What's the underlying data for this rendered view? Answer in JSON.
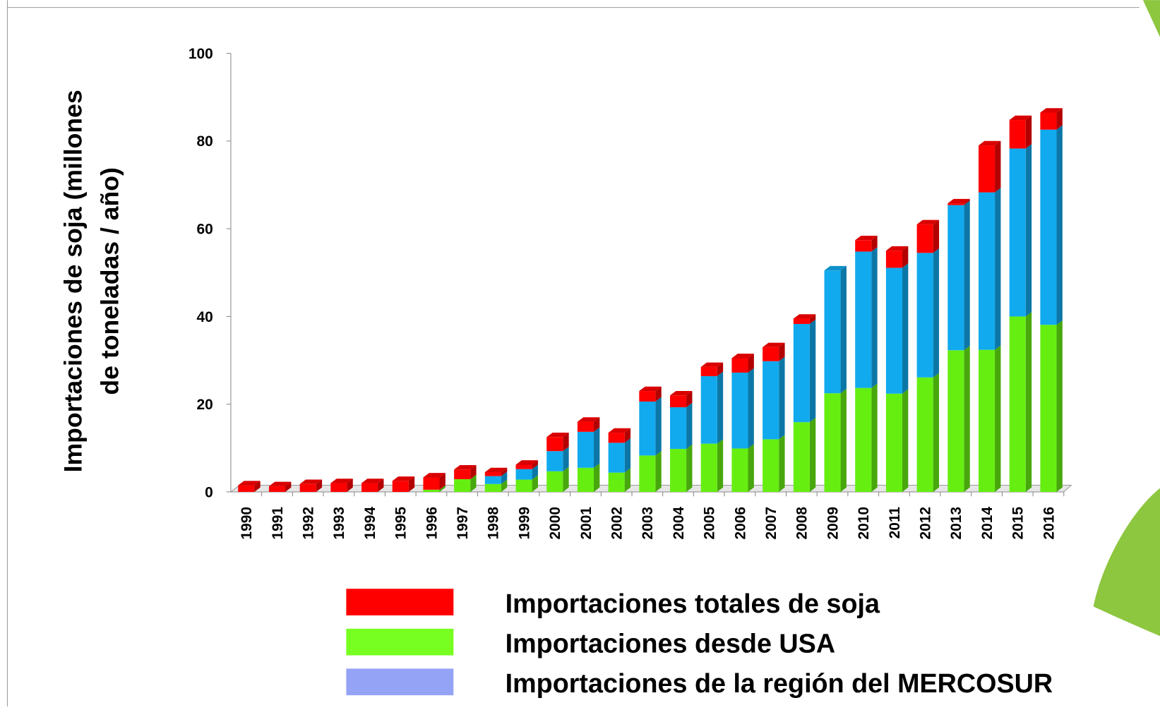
{
  "chart_data": {
    "type": "bar",
    "stacked": true,
    "ylabel": [
      "Importaciones de soja (millones",
      "de toneladas / año)"
    ],
    "categories": [
      "1990",
      "1991",
      "1992",
      "1993",
      "1994",
      "1995",
      "1996",
      "1997",
      "1998",
      "1999",
      "2000",
      "2001",
      "2002",
      "2003",
      "2004",
      "2005",
      "2006",
      "2007",
      "2008",
      "2009",
      "2010",
      "2011",
      "2012",
      "2013",
      "2014",
      "2015",
      "2016"
    ],
    "series": [
      {
        "name": "Importaciones totales de soja",
        "color": "#ff0000",
        "legend_color": "#ff0000",
        "values": [
          1.5,
          1.3,
          1.8,
          2.0,
          2.0,
          2.5,
          2.8,
          2.2,
          0.9,
          1.0,
          3.2,
          2.3,
          2.3,
          2.4,
          2.7,
          2.1,
          3.3,
          3.2,
          1.2,
          0,
          2.6,
          3.9,
          6.5,
          0.4,
          10.7,
          6.5,
          3.9
        ]
      },
      {
        "name": "Importaciones desde USA",
        "color": "#66ee11",
        "legend_color": "#77ff22",
        "values": [
          0,
          0,
          0,
          0,
          0,
          0,
          0.5,
          2.9,
          1.8,
          2.8,
          4.7,
          5.5,
          4.4,
          8.3,
          9.8,
          11.0,
          9.9,
          12.0,
          15.9,
          22.5,
          23.7,
          22.4,
          26.1,
          32.3,
          32.4,
          40.0,
          38.1
        ]
      },
      {
        "name": "Importaciones de la región del MERCOSUR",
        "color": "#11aaee",
        "legend_color": "#95a3f7",
        "values": [
          0,
          0,
          0,
          0,
          0,
          0,
          0,
          0,
          1.8,
          2.4,
          4.6,
          8.2,
          6.8,
          12.3,
          9.5,
          15.4,
          17.3,
          17.8,
          22.4,
          28.0,
          31.1,
          28.7,
          28.4,
          33.1,
          35.9,
          38.3,
          44.5
        ]
      }
    ],
    "ylim": [
      0,
      100
    ],
    "yticks": [
      0,
      20,
      40,
      60,
      80,
      100
    ],
    "grid": false
  }
}
